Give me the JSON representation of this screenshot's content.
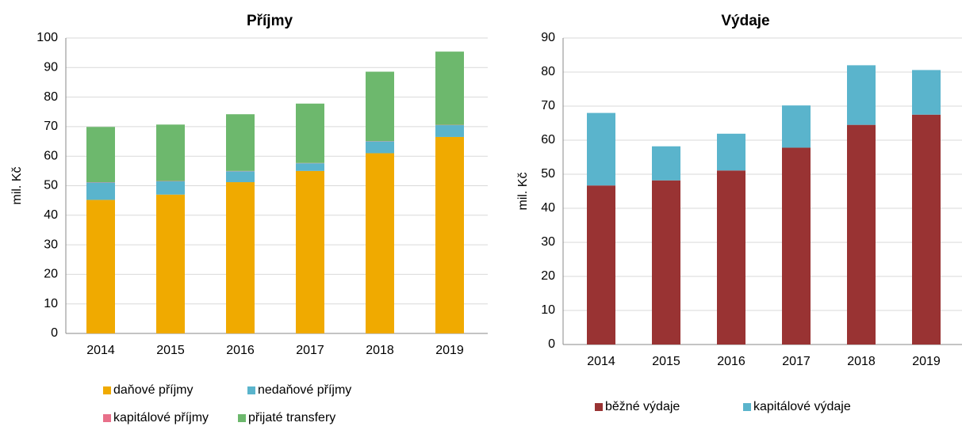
{
  "chart_data": [
    {
      "type": "bar",
      "stacked": true,
      "title": "Příjmy",
      "y_label": "mil. Kč",
      "categories": [
        "2014",
        "2015",
        "2016",
        "2017",
        "2018",
        "2019"
      ],
      "ylim": [
        0,
        100
      ],
      "yticks": [
        0,
        10,
        20,
        30,
        40,
        50,
        60,
        70,
        80,
        90,
        100
      ],
      "grid": true,
      "series": [
        {
          "name": "daňové příjmy",
          "color": "#f0aa00",
          "values": [
            45.2,
            47,
            51.2,
            55,
            61,
            66.5
          ]
        },
        {
          "name": "nedaňové příjmy",
          "color": "#5ab4cc",
          "values": [
            5.9,
            4.5,
            3.7,
            2.6,
            4,
            4
          ]
        },
        {
          "name": "kapitálové příjmy",
          "color": "#e8708a",
          "values": [
            0.1,
            0.1,
            0.1,
            0.1,
            0.1,
            0.1
          ]
        },
        {
          "name": "přijaté transfery",
          "color": "#6db86d",
          "values": [
            18.7,
            19.1,
            19.2,
            20.1,
            23.5,
            24.8
          ]
        }
      ]
    },
    {
      "type": "bar",
      "stacked": true,
      "title": "Výdaje",
      "y_label": "mil. Kč",
      "categories": [
        "2014",
        "2015",
        "2016",
        "2017",
        "2018",
        "2019"
      ],
      "ylim": [
        0,
        90
      ],
      "yticks": [
        0,
        10,
        20,
        30,
        40,
        50,
        60,
        70,
        80,
        90
      ],
      "grid": true,
      "series": [
        {
          "name": "běžné výdaje",
          "color": "#993333",
          "values": [
            46.7,
            48.2,
            51.1,
            57.8,
            64.5,
            67.5
          ]
        },
        {
          "name": "kapitálové výdaje",
          "color": "#5ab4cc",
          "values": [
            21.3,
            10,
            10.8,
            12.4,
            17.5,
            13.1
          ]
        }
      ]
    }
  ]
}
